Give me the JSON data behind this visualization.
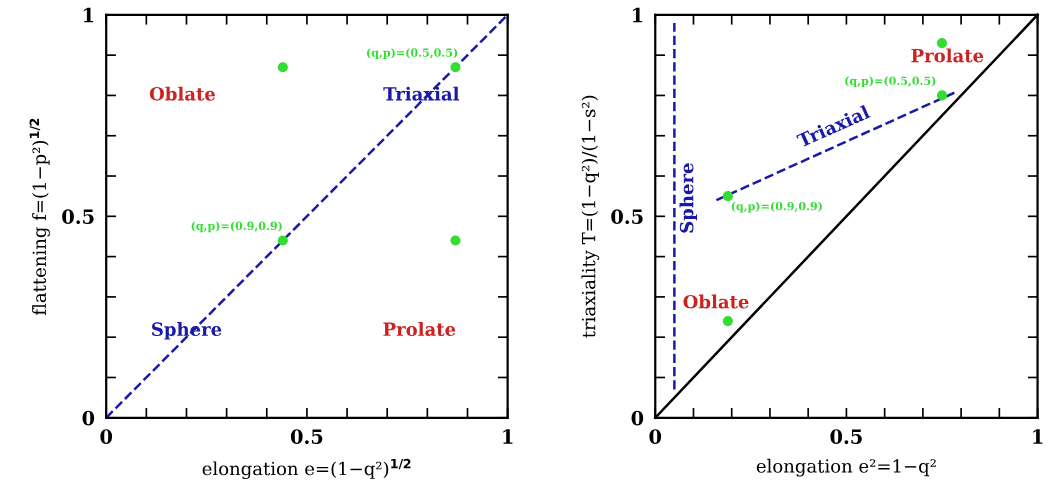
{
  "chart_data": [
    {
      "type": "scatter",
      "xlabel": "elongation e=(1−q²)$^{1/2}$",
      "ylabel": "flattening f=(1−p²)$^{1/2}$",
      "xlim": [
        0,
        1
      ],
      "ylim": [
        0,
        1
      ],
      "xticks": [
        0,
        {
          "value": 0.1,
          "label": null
        },
        {
          "value": 0.2,
          "label": null
        },
        {
          "value": 0.3,
          "label": null
        },
        {
          "value": 0.4,
          "label": null
        },
        0.5,
        {
          "value": 0.6,
          "label": null
        },
        {
          "value": 0.7,
          "label": null
        },
        {
          "value": 0.8,
          "label": null
        },
        {
          "value": 0.9,
          "label": null
        },
        1
      ],
      "yticks": [
        0,
        {
          "value": 0.1,
          "label": null
        },
        {
          "value": 0.2,
          "label": null
        },
        {
          "value": 0.3,
          "label": null
        },
        {
          "value": 0.4,
          "label": null
        },
        0.5,
        {
          "value": 0.6,
          "label": null
        },
        {
          "value": 0.7,
          "label": null
        },
        {
          "value": 0.8,
          "label": null
        },
        {
          "value": 0.9,
          "label": null
        },
        1
      ],
      "series": [
        {
          "type": "line",
          "x": [
            0,
            1
          ],
          "values": [
            0,
            1
          ],
          "color": "#1a1aa8",
          "line_style": "dashed",
          "marker": "none"
        },
        {
          "x": [
            0.44,
            0.87,
            0.44,
            0.87
          ],
          "values": [
            0.87,
            0.87,
            0.44,
            0.44
          ],
          "color": "#33dd33",
          "marker": "circle"
        }
      ],
      "annotations": [
        "Oblate",
        {
          "text": "Triaxial",
          "x": 0.785,
          "y": 0.8
        },
        {
          "text": "Sphere",
          "x": 0.2,
          "y": 0.216
        },
        "Prolate",
        {
          "text": "(q,p)=(0.5,0.5)",
          "x": 0.87,
          "y": 0.87
        },
        {
          "text": "(q,p)=(0.9,0.9)",
          "x": 0.44,
          "y": 0.44
        }
      ]
    },
    {
      "type": "scatter",
      "xlabel": "elongation e²=1−q²",
      "ylabel": "triaxiality T=(1−q²)/(1−s²)",
      "xlim": [
        0,
        1
      ],
      "ylim": [
        0,
        1
      ],
      "xticks": [
        0,
        {
          "value": 0.1,
          "label": null
        },
        {
          "value": 0.2,
          "label": null
        },
        {
          "value": 0.3,
          "label": null
        },
        {
          "value": 0.4,
          "label": null
        },
        0.5,
        {
          "value": 0.6,
          "label": null
        },
        {
          "value": 0.7,
          "label": null
        },
        {
          "value": 0.8,
          "label": null
        },
        {
          "value": 0.9,
          "label": null
        },
        1
      ],
      "yticks": [
        0,
        {
          "value": 0.1,
          "label": null
        },
        {
          "value": 0.2,
          "label": null
        },
        {
          "value": 0.3,
          "label": null
        },
        {
          "value": 0.4,
          "label": null
        },
        0.5,
        {
          "value": 0.6,
          "label": null
        },
        {
          "value": 0.7,
          "label": null
        },
        {
          "value": 0.8,
          "label": null
        },
        {
          "value": 0.9,
          "label": null
        },
        1
      ],
      "series": [
        {
          "type": "line",
          "x": [
            0,
            1
          ],
          "values": [
            0,
            1
          ],
          "color": "#000000",
          "line_style": "solid",
          "marker": "none"
        },
        {
          "type": "line",
          "x": [
            0.05,
            0.05
          ],
          "values": [
            0.07,
            0.98
          ],
          "color": "#1a1aa8",
          "line_style": "dashed",
          "marker": "none"
        },
        {
          "type": "line",
          "x": [
            0.16,
            0.79
          ],
          "values": [
            0.54,
            0.81
          ],
          "color": "#1a1aa8",
          "line_style": "dashed",
          "marker": "none"
        },
        {
          "x": [
            0.19,
            0.19,
            0.75,
            0.75
          ],
          "values": [
            0.55,
            0.24,
            0.8,
            0.93
          ],
          "color": "#33dd33",
          "marker": "circle"
        }
      ],
      "annotations": [
        "Prolate",
        {
          "text": "(q,p)=(0.5,0.5)",
          "x": 0.75,
          "y": 0.8
        },
        "Triaxial",
        {
          "text": "Sphere",
          "x": 0.05,
          "y": 0.545
        },
        {
          "text": "(q,p)=(0.9,0.9)",
          "x": 0.19,
          "y": 0.55
        },
        "Oblate"
      ]
    }
  ]
}
